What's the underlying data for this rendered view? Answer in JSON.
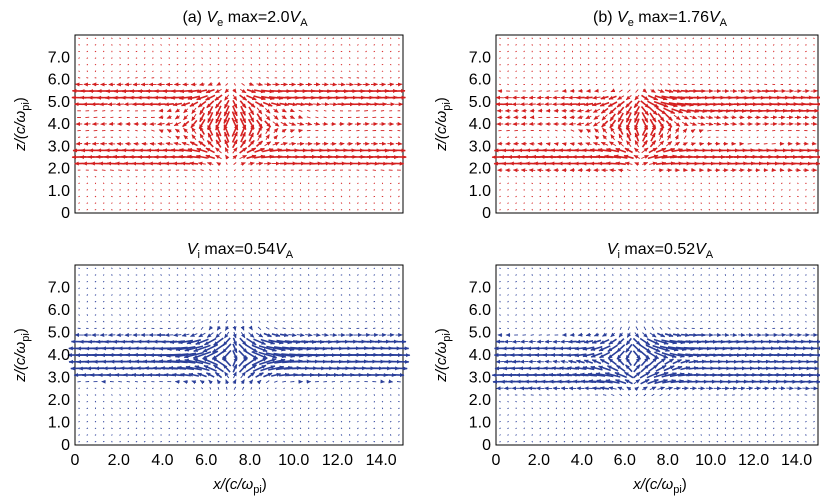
{
  "chart_data": [
    {
      "type": "quiver",
      "panel": "a",
      "title_prefix": "(a) ",
      "title_var": "V",
      "title_var_sub": "e",
      "title_mid": " max=2.0",
      "title_unit": "V",
      "title_unit_sub": "A",
      "color": "#d42020",
      "max_value": 2.0,
      "xlim": [
        0,
        15
      ],
      "ylim": [
        0,
        8
      ],
      "xticks": [],
      "yticks": [
        "0",
        "1.0",
        "2.0",
        "3.0",
        "4.0",
        "5.0",
        "6.0",
        "7.0"
      ],
      "ylabel": "z/(c/ω",
      "ylabel_sub": "pi",
      "ylabel_end": ")",
      "flow": {
        "pattern": "symmetric",
        "bands": [
          5.3,
          2.6
        ],
        "center": [
          7.1,
          4.0
        ],
        "sheet_y": 4.0,
        "band_amp": 0.9,
        "vertical_amp": 0.6
      }
    },
    {
      "type": "quiver",
      "panel": "b",
      "title_prefix": "(b) ",
      "title_var": "V",
      "title_var_sub": "e",
      "title_mid": " max=1.76",
      "title_unit": "V",
      "title_unit_sub": "A",
      "color": "#d42020",
      "max_value": 1.76,
      "xlim": [
        0,
        15
      ],
      "ylim": [
        0,
        8
      ],
      "xticks": [],
      "yticks": [
        "0",
        "1.0",
        "2.0",
        "3.0",
        "4.0",
        "5.0",
        "6.0",
        "7.0"
      ],
      "ylabel": "z/(c/ω",
      "ylabel_sub": "pi",
      "ylabel_end": ")",
      "flow": {
        "pattern": "asymmetric",
        "bands": [
          5.0,
          2.5
        ],
        "center": [
          6.7,
          4.0
        ],
        "sheet_y": 4.0,
        "band_amp": 1.0,
        "vertical_amp": 0.5
      }
    },
    {
      "type": "quiver",
      "panel": "c",
      "title_prefix": "",
      "title_var": "V",
      "title_var_sub": "i",
      "title_mid": " max=0.54",
      "title_unit": "V",
      "title_unit_sub": "A",
      "color": "#2a3f9a",
      "max_value": 0.54,
      "xlim": [
        0,
        15
      ],
      "ylim": [
        0,
        8
      ],
      "xticks": [
        "0",
        "2.0",
        "4.0",
        "6.0",
        "8.0",
        "10.0",
        "12.0",
        "14.0"
      ],
      "yticks": [
        "0",
        "1.0",
        "2.0",
        "3.0",
        "4.0",
        "5.0",
        "6.0",
        "7.0"
      ],
      "xlabel": "x/(c/ω",
      "xlabel_sub": "pi",
      "xlabel_end": ")",
      "ylabel": "z/(c/ω",
      "ylabel_sub": "pi",
      "ylabel_end": ")",
      "flow": {
        "pattern": "symmetric",
        "bands": [
          4.4,
          3.5
        ],
        "center": [
          7.3,
          4.0
        ],
        "sheet_y": 4.0,
        "band_amp": 1.0,
        "vertical_amp": 0.45
      }
    },
    {
      "type": "quiver",
      "panel": "d",
      "title_prefix": "",
      "title_var": "V",
      "title_var_sub": "i",
      "title_mid": " max=0.52",
      "title_unit": "V",
      "title_unit_sub": "A",
      "color": "#2a3f9a",
      "max_value": 0.52,
      "xlim": [
        0,
        15
      ],
      "ylim": [
        0,
        8
      ],
      "xticks": [
        "0",
        "2.0",
        "4.0",
        "6.0",
        "8.0",
        "10.0",
        "12.0",
        "14.0"
      ],
      "yticks": [
        "0",
        "1.0",
        "2.0",
        "3.0",
        "4.0",
        "5.0",
        "6.0",
        "7.0"
      ],
      "xlabel": "x/(c/ω",
      "xlabel_sub": "pi",
      "xlabel_end": ")",
      "ylabel": "z/(c/ω",
      "ylabel_sub": "pi",
      "ylabel_end": ")",
      "flow": {
        "pattern": "asymmetric",
        "bands": [
          4.4,
          3.0
        ],
        "center": [
          6.5,
          3.9
        ],
        "sheet_y": 4.0,
        "band_amp": 1.0,
        "vertical_amp": 0.4
      }
    }
  ]
}
